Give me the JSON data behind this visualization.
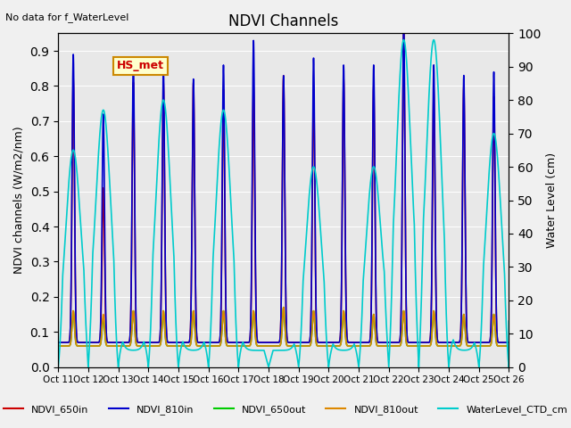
{
  "title": "NDVI Channels",
  "no_data_text": "No data for f_WaterLevel",
  "hs_met_label": "HS_met",
  "ylabel_left": "NDVI channels (W/m2/nm)",
  "ylabel_right": "Water Level (cm)",
  "ylim_left": [
    0,
    0.95
  ],
  "ylim_right": [
    0,
    100
  ],
  "yticks_left": [
    0.0,
    0.1,
    0.2,
    0.3,
    0.4,
    0.5,
    0.6,
    0.7,
    0.8,
    0.9
  ],
  "yticks_right": [
    0,
    10,
    20,
    30,
    40,
    50,
    60,
    70,
    80,
    90,
    100
  ],
  "background_color": "#f0f0f0",
  "plot_bg_color": "#e8e8e8",
  "peaks_810in": [
    0.82,
    0.65,
    0.8,
    0.78,
    0.75,
    0.79,
    0.86,
    0.76,
    0.81,
    0.79,
    0.79,
    0.91,
    0.79,
    0.76,
    0.77
  ],
  "peaks_650in": [
    0.75,
    0.44,
    0.74,
    0.74,
    0.74,
    0.72,
    0.73,
    0.76,
    0.72,
    0.75,
    0.73,
    0.88,
    0.72,
    0.73,
    0.7
  ],
  "peaks_810out": [
    0.1,
    0.09,
    0.1,
    0.1,
    0.1,
    0.1,
    0.1,
    0.11,
    0.1,
    0.1,
    0.09,
    0.1,
    0.1,
    0.09,
    0.09
  ],
  "peaks_650out": [
    0.1,
    0.08,
    0.1,
    0.1,
    0.1,
    0.1,
    0.1,
    0.11,
    0.1,
    0.1,
    0.09,
    0.1,
    0.1,
    0.09,
    0.09
  ],
  "water_peaks": [
    60.0,
    72.0,
    0.0,
    75.0,
    0.0,
    72.0,
    0.0,
    0.0,
    55.0,
    0.0,
    55.0,
    93.0,
    93.0,
    0.0,
    65.0
  ],
  "x_tick_labels": [
    "Oct 11",
    "Oct 12",
    "Oct 13",
    "Oct 14",
    "Oct 15",
    "Oct 16",
    "Oct 17",
    "Oct 18",
    "Oct 19",
    "Oct 20",
    "Oct 21",
    "Oct 22",
    "Oct 23",
    "Oct 24",
    "Oct 25",
    "Oct 26"
  ],
  "legend_entries": [
    {
      "label": "NDVI_650in",
      "color": "#cc0000"
    },
    {
      "label": "NDVI_810in",
      "color": "#0000cc"
    },
    {
      "label": "NDVI_650out",
      "color": "#00cc00"
    },
    {
      "label": "NDVI_810out",
      "color": "#dd8800"
    },
    {
      "label": "WaterLevel_CTD_cm",
      "color": "#00cccc"
    }
  ]
}
